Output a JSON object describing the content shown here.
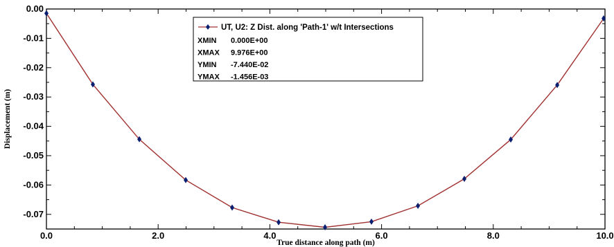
{
  "chart_data": {
    "type": "line",
    "xlabel": "True distance along path (m)",
    "ylabel": "Displacement (m)",
    "xlim": [
      0,
      10
    ],
    "ylim": [
      -0.075,
      0.0
    ],
    "x_ticks": [
      "0.0",
      "2.0",
      "4.0",
      "6.0",
      "8.0",
      "10.0"
    ],
    "y_ticks": [
      "0.00",
      "-0.01",
      "-0.02",
      "-0.03",
      "-0.04",
      "-0.05",
      "-0.06",
      "-0.07"
    ],
    "x_tick_values": [
      0,
      2,
      4,
      6,
      8,
      10
    ],
    "y_tick_values": [
      0.0,
      -0.01,
      -0.02,
      -0.03,
      -0.04,
      -0.05,
      -0.06,
      -0.07
    ],
    "grid": false,
    "legend_position": "top-center",
    "line_color": "#a03030",
    "marker_color": "#0b1f70",
    "series": [
      {
        "name": "UT, U2: Z Dist. along 'Path-1' w/t Intersections",
        "x": [
          0.0,
          0.831,
          1.663,
          2.494,
          3.325,
          4.157,
          4.988,
          5.819,
          6.651,
          7.482,
          8.313,
          9.145,
          9.976
        ],
        "y": [
          -0.00146,
          -0.0257,
          -0.0444,
          -0.0583,
          -0.0677,
          -0.0727,
          -0.0744,
          -0.0725,
          -0.0671,
          -0.0579,
          -0.0445,
          -0.0259,
          -0.0032
        ]
      }
    ],
    "legend_stats": [
      {
        "label": "XMIN",
        "value": "0.000E+00"
      },
      {
        "label": "XMAX",
        "value": "9.976E+00"
      },
      {
        "label": "YMIN",
        "value": "-7.440E-02"
      },
      {
        "label": "YMAX",
        "value": "-1.456E-03"
      }
    ]
  }
}
